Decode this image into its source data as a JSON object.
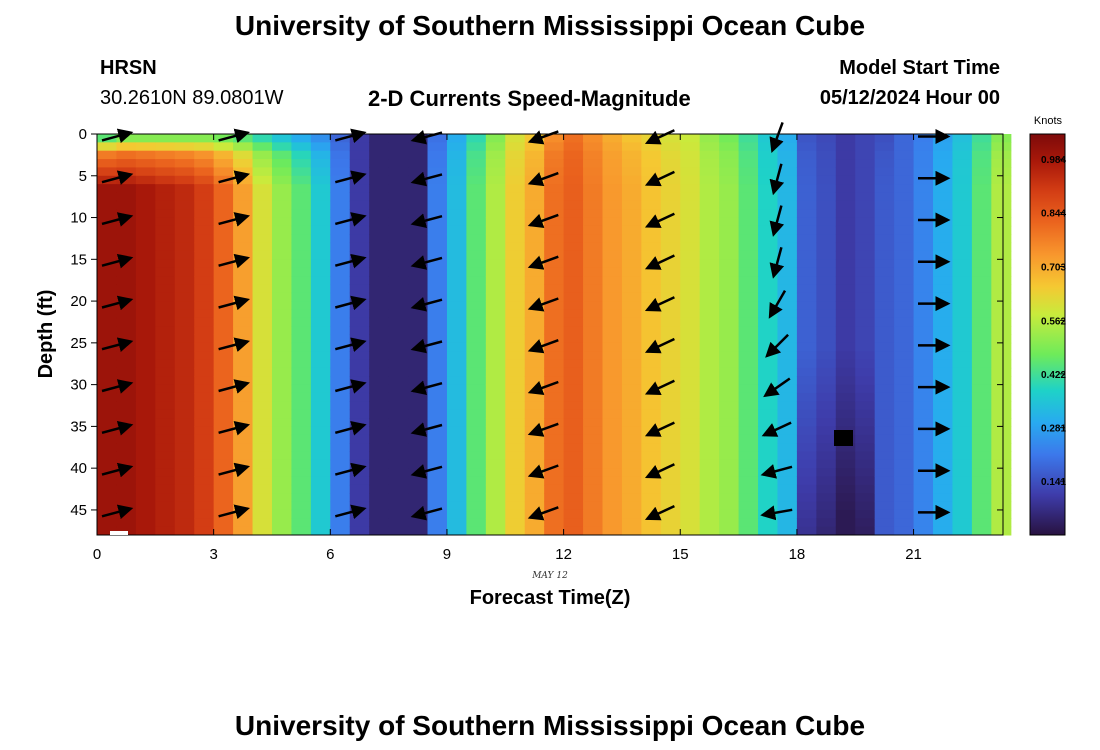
{
  "header": {
    "title": "University of Southern Mississippi Ocean Cube",
    "station": "HRSN",
    "location": "30.2610N  89.0801W",
    "plot_title": "2-D Currents Speed-Magnitude",
    "model_start_label": "Model Start Time",
    "model_start_value": "05/12/2024 Hour 00",
    "footer_title": "University of Southern Mississippi Ocean Cube"
  },
  "chart_data": {
    "type": "heatmap",
    "title": "2-D Currents Speed-Magnitude",
    "xlabel": "Forecast Time(Z)",
    "ylabel": "Depth (ft)",
    "x_sub_label": "MAY 12",
    "xlim": [
      0,
      23.3
    ],
    "ylim": [
      48,
      0
    ],
    "x_ticks": [
      0,
      3,
      6,
      9,
      12,
      15,
      18,
      21
    ],
    "y_ticks": [
      0,
      5,
      10,
      15,
      20,
      25,
      30,
      35,
      40,
      45
    ],
    "colorbar": {
      "unit": "Knots",
      "range": [
        0,
        1.05
      ],
      "ticks": [
        "0.984",
        "0.844",
        "0.703",
        "0.562",
        "0.422",
        "0.281",
        "0.141"
      ],
      "tick_values": [
        0.984,
        0.844,
        0.703,
        0.562,
        0.422,
        0.281,
        0.141
      ]
    },
    "time_hours": [
      0,
      0.5,
      1,
      1.5,
      2,
      2.5,
      3,
      3.5,
      4,
      4.5,
      5,
      5.5,
      6,
      6.5,
      7,
      7.5,
      8,
      8.5,
      9,
      9.5,
      10,
      10.5,
      11,
      11.5,
      12,
      12.5,
      13,
      13.5,
      14,
      14.5,
      15,
      15.5,
      16,
      16.5,
      17,
      17.5,
      18,
      18.5,
      19,
      19.5,
      20,
      20.5,
      21,
      21.5,
      22,
      22.5,
      23
    ],
    "speed_below_surface_knots": [
      1.0,
      1.0,
      0.98,
      0.96,
      0.94,
      0.9,
      0.82,
      0.72,
      0.6,
      0.52,
      0.45,
      0.36,
      0.22,
      0.1,
      0.05,
      0.05,
      0.05,
      0.22,
      0.33,
      0.45,
      0.55,
      0.64,
      0.7,
      0.8,
      0.83,
      0.78,
      0.73,
      0.7,
      0.66,
      0.63,
      0.6,
      0.55,
      0.52,
      0.45,
      0.38,
      0.32,
      0.17,
      0.14,
      0.1,
      0.12,
      0.16,
      0.18,
      0.23,
      0.3,
      0.36,
      0.45,
      0.55
    ],
    "speed_surface_knots": [
      0.45,
      0.5,
      0.5,
      0.5,
      0.5,
      0.5,
      0.48,
      0.45,
      0.4,
      0.35,
      0.3,
      0.25,
      0.18,
      0.1,
      0.05,
      0.05,
      0.05,
      0.2,
      0.3,
      0.4,
      0.5,
      0.6,
      0.65,
      0.75,
      0.8,
      0.75,
      0.7,
      0.66,
      0.63,
      0.6,
      0.58,
      0.52,
      0.48,
      0.42,
      0.36,
      0.3,
      0.15,
      0.13,
      0.1,
      0.12,
      0.14,
      0.18,
      0.22,
      0.28,
      0.34,
      0.42,
      0.5
    ],
    "vector_times": [
      0.5,
      3.5,
      6.5,
      8.5,
      11.5,
      14.5,
      17.5,
      21.5
    ],
    "vector_depths_ft": [
      0,
      5,
      10,
      15,
      20,
      25,
      30,
      35,
      40,
      45
    ],
    "vector_direction_deg": [
      15,
      15,
      15,
      195,
      200,
      205,
      240,
      0
    ],
    "vector_direction_by_depth_at_17_5h_deg": [
      250,
      255,
      255,
      255,
      240,
      225,
      215,
      205,
      195,
      190
    ]
  }
}
